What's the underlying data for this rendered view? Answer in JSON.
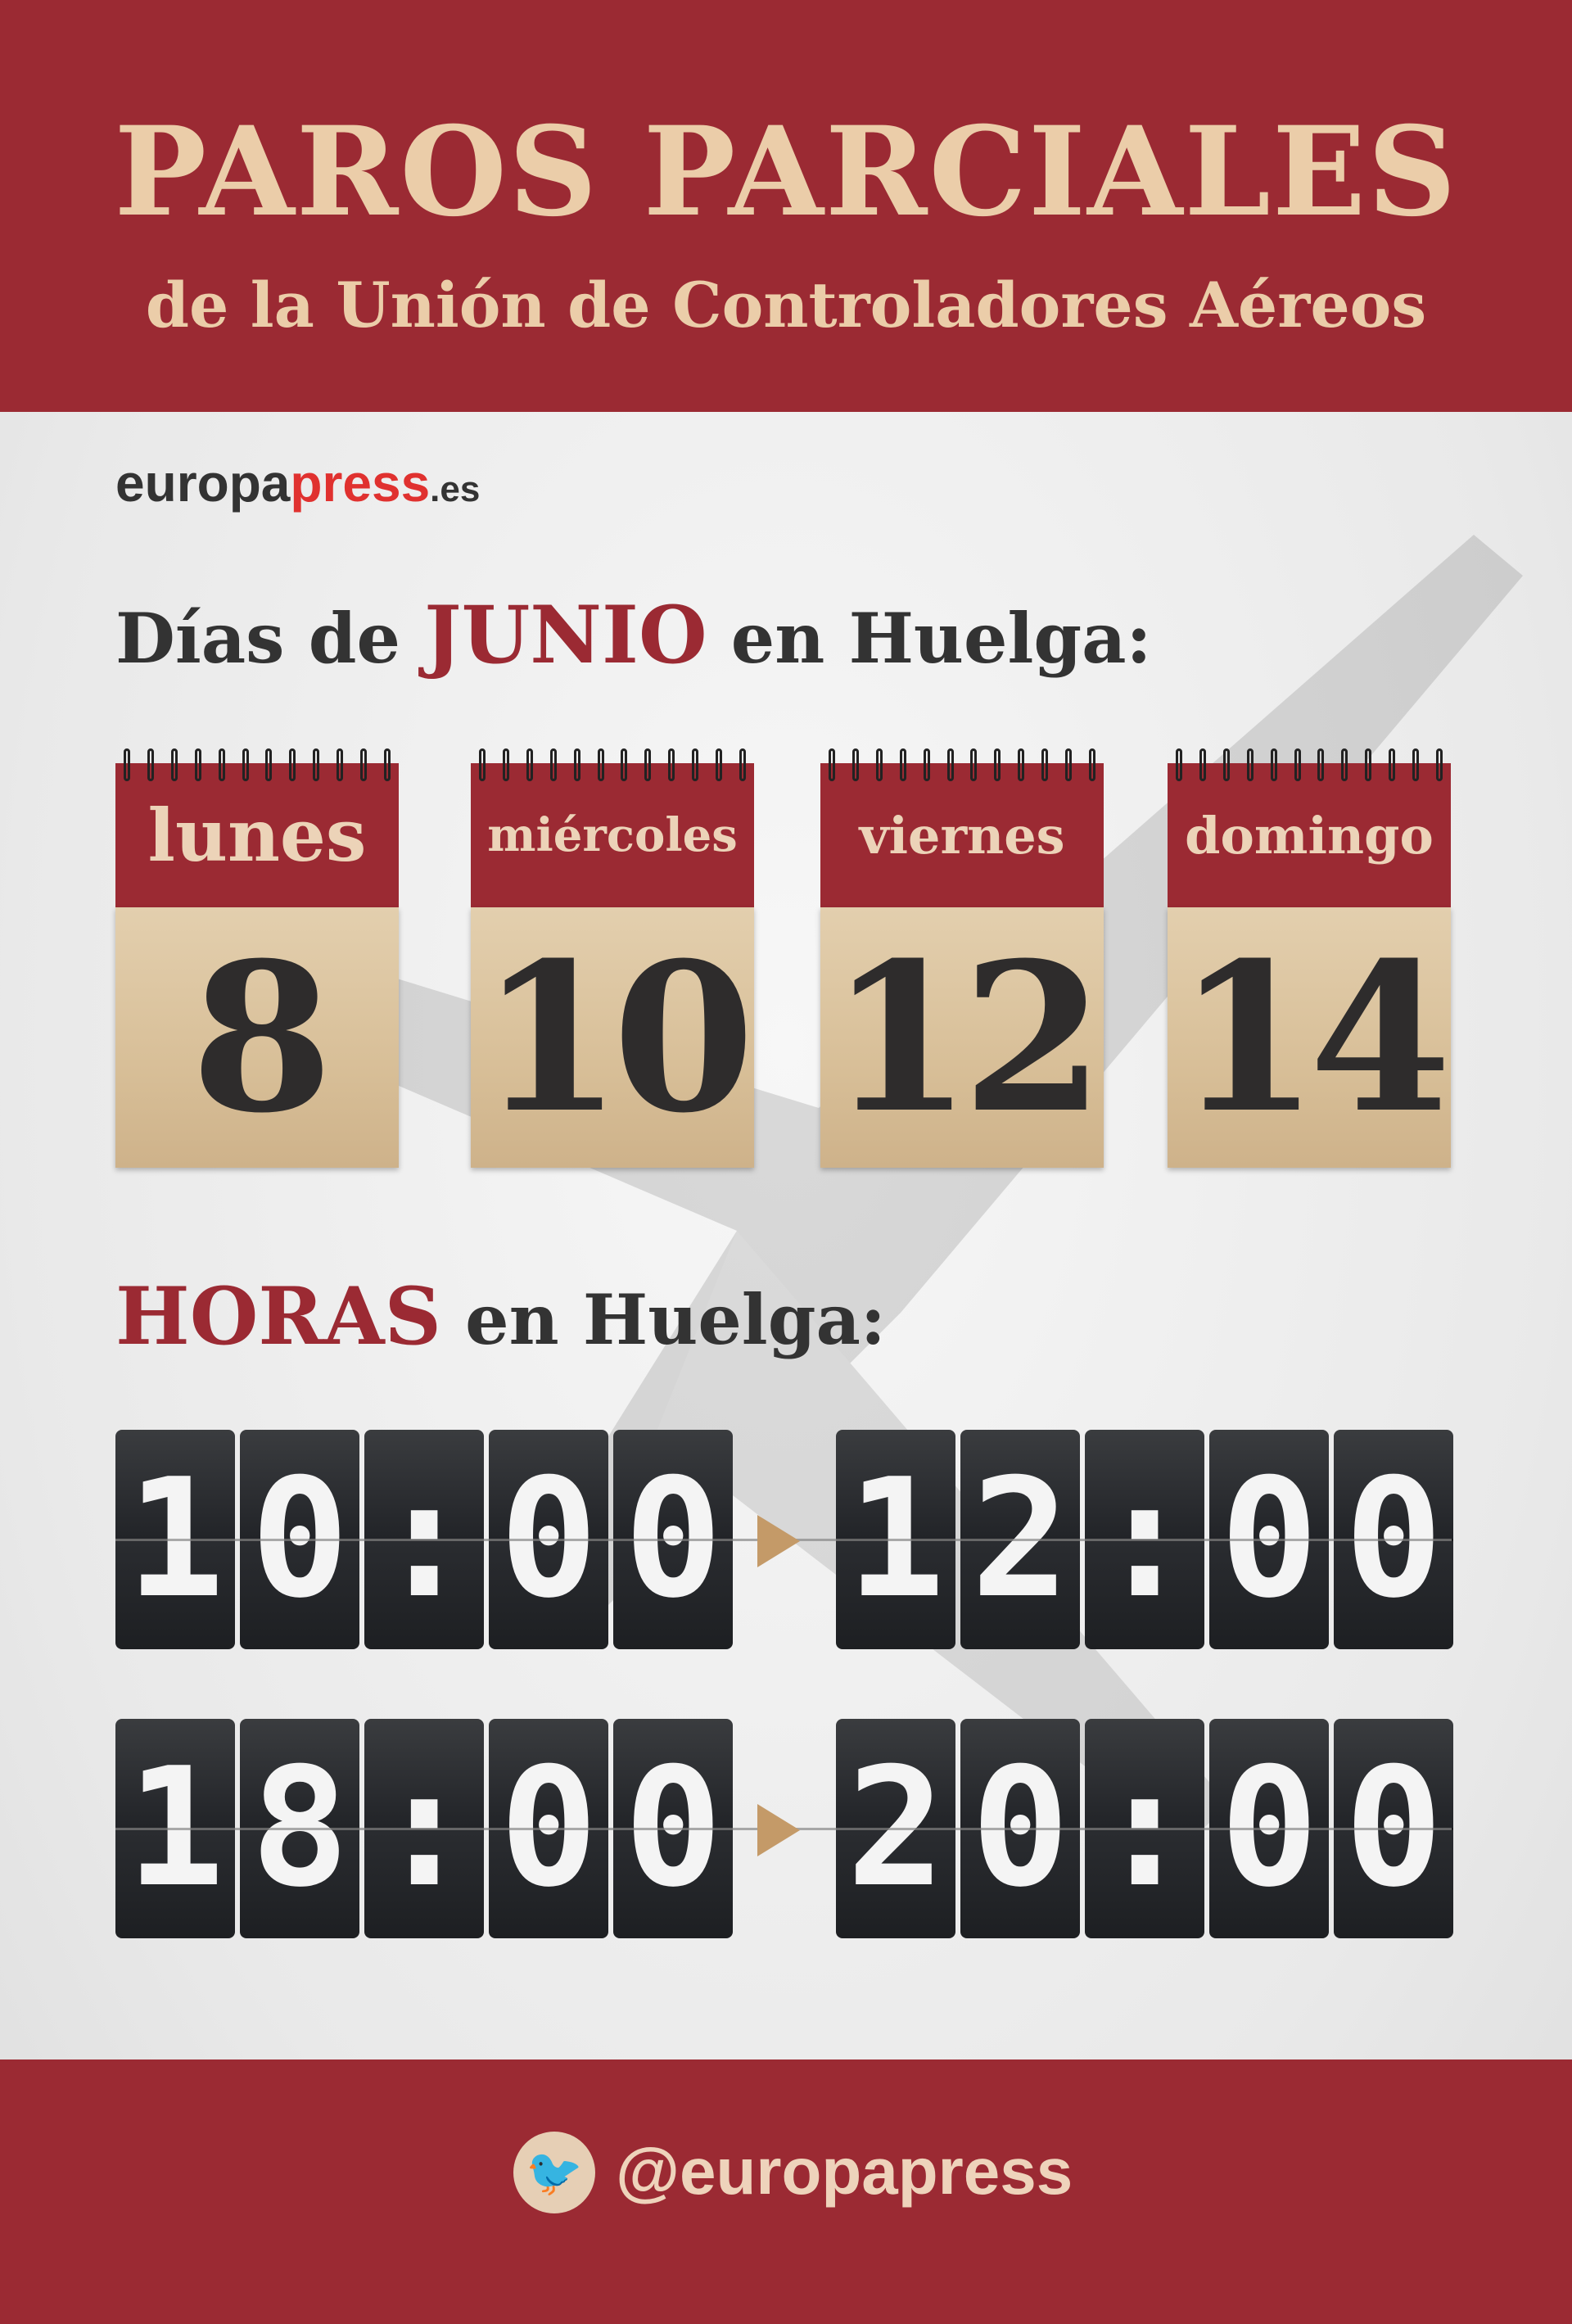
{
  "header": {
    "title": "PAROS PARCIALES",
    "subtitle": "de la Unión de Controladores Aéreos"
  },
  "logo": {
    "part1": "europa",
    "part2": "press",
    "part3": ".es"
  },
  "days_heading": {
    "pre": "Días de ",
    "accent": "JUNIO",
    "post": " en Huelga:"
  },
  "days": [
    {
      "weekday": "lunes",
      "day": "8"
    },
    {
      "weekday": "miércoles",
      "day": "10"
    },
    {
      "weekday": "viernes",
      "day": "12"
    },
    {
      "weekday": "domingo",
      "day": "14"
    }
  ],
  "hours_heading": {
    "accent": "HORAS",
    "post": " en Huelga:"
  },
  "hours": [
    {
      "start": "10:00",
      "end": "12:00"
    },
    {
      "start": "18:00",
      "end": "20:00"
    }
  ],
  "footer": {
    "icon": "twitter-icon",
    "handle": "@europapress"
  },
  "colors": {
    "brand_red": "#9b2a33",
    "cream": "#ebcda9",
    "arrow": "#c49a68"
  }
}
